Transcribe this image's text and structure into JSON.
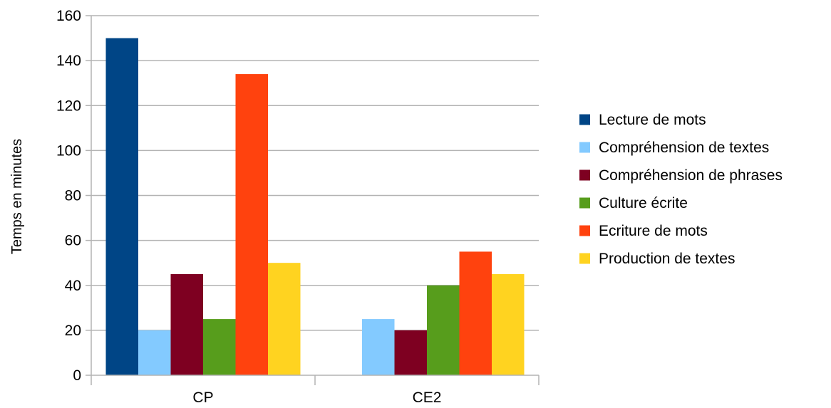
{
  "chart_data": {
    "type": "bar",
    "categories": [
      "CP",
      "CE2"
    ],
    "ylabel": "Temps en minutes",
    "xlabel": "",
    "ylim": [
      0,
      160
    ],
    "yticks": [
      0,
      20,
      40,
      60,
      80,
      100,
      120,
      140,
      160
    ],
    "grid": true,
    "legend_position": "right",
    "series": [
      {
        "name": "Lecture de mots",
        "color": "#004586",
        "values": [
          150,
          0
        ]
      },
      {
        "name": "Compréhension de textes",
        "color": "#83caff",
        "values": [
          20,
          25
        ]
      },
      {
        "name": "Compréhension de phrases",
        "color": "#7e0021",
        "values": [
          45,
          20
        ]
      },
      {
        "name": "Culture écrite",
        "color": "#579d1c",
        "values": [
          25,
          40
        ]
      },
      {
        "name": "Ecriture de mots",
        "color": "#ff420e",
        "values": [
          134,
          55
        ]
      },
      {
        "name": "Production de textes",
        "color": "#ffd320",
        "values": [
          50,
          45
        ]
      }
    ]
  }
}
